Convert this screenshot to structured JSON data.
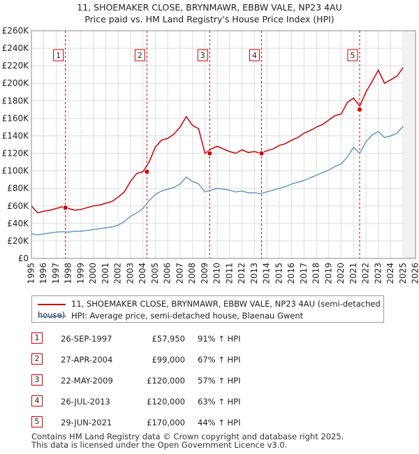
{
  "title_line1": "11, SHOEMAKER CLOSE, BRYNMAWR, EBBW VALE, NP23 4AU",
  "title_line2": "Price paid vs. HM Land Registry's House Price Index (HPI)",
  "chart_data": {
    "type": "line",
    "title": "11, SHOEMAKER CLOSE, BRYNMAWR, EBBW VALE, NP23 4AU — Price paid vs. HM Land Registry's House Price Index (HPI)",
    "xlabel": "",
    "ylabel": "",
    "xlim": [
      1995,
      2026
    ],
    "ylim": [
      0,
      260000
    ],
    "grid": true,
    "x_ticks": [
      1995,
      1996,
      1997,
      1998,
      1999,
      2000,
      2001,
      2002,
      2003,
      2004,
      2005,
      2006,
      2007,
      2008,
      2009,
      2010,
      2011,
      2012,
      2013,
      2014,
      2015,
      2016,
      2017,
      2018,
      2019,
      2020,
      2021,
      2022,
      2023,
      2024,
      2025,
      2026
    ],
    "y_ticks": [
      0,
      20000,
      40000,
      60000,
      80000,
      100000,
      120000,
      140000,
      160000,
      180000,
      200000,
      220000,
      240000,
      260000
    ],
    "y_tick_labels": [
      "£0",
      "£20K",
      "£40K",
      "£60K",
      "£80K",
      "£100K",
      "£120K",
      "£140K",
      "£160K",
      "£180K",
      "£200K",
      "£220K",
      "£240K",
      "£260K"
    ],
    "colors": {
      "property": "#cc0000",
      "hpi": "#6699cc",
      "marker_line": "#cc0000",
      "grid": "#dddddd"
    },
    "series": [
      {
        "name": "11, SHOEMAKER CLOSE, BRYNMAWR, EBBW VALE, NP23 4AU (semi-detached house)",
        "color": "#cc0000",
        "x": [
          1995.0,
          1995.5,
          1996.0,
          1996.5,
          1997.0,
          1997.5,
          1998.0,
          1998.5,
          1999.0,
          1999.5,
          2000.0,
          2000.5,
          2001.0,
          2001.5,
          2002.0,
          2002.5,
          2003.0,
          2003.5,
          2004.0,
          2004.5,
          2005.0,
          2005.5,
          2006.0,
          2006.5,
          2007.0,
          2007.5,
          2008.0,
          2008.5,
          2009.0,
          2009.5,
          2010.0,
          2010.5,
          2011.0,
          2011.5,
          2012.0,
          2012.5,
          2013.0,
          2013.5,
          2014.0,
          2014.5,
          2015.0,
          2015.5,
          2016.0,
          2016.5,
          2017.0,
          2017.5,
          2018.0,
          2018.5,
          2019.0,
          2019.5,
          2020.0,
          2020.5,
          2021.0,
          2021.5,
          2022.0,
          2022.5,
          2023.0,
          2023.5,
          2024.0,
          2024.5,
          2025.0
        ],
        "y": [
          60000,
          52000,
          54000,
          55000,
          57000,
          59000,
          57000,
          55000,
          56000,
          58000,
          60000,
          61000,
          63000,
          65000,
          70000,
          76000,
          88000,
          97000,
          99000,
          110000,
          127000,
          135000,
          137000,
          142000,
          150000,
          162000,
          152000,
          148000,
          120000,
          125000,
          128000,
          125000,
          122000,
          120000,
          124000,
          121000,
          122000,
          120000,
          123000,
          125000,
          129000,
          131000,
          135000,
          138000,
          143000,
          146000,
          150000,
          153000,
          158000,
          163000,
          165000,
          178000,
          183000,
          174000,
          190000,
          202000,
          215000,
          200000,
          204000,
          208000,
          218000
        ]
      },
      {
        "name": "HPI: Average price, semi-detached house, Blaenau Gwent",
        "color": "#6699cc",
        "x": [
          1995.0,
          1995.5,
          1996.0,
          1996.5,
          1997.0,
          1997.5,
          1998.0,
          1998.5,
          1999.0,
          1999.5,
          2000.0,
          2000.5,
          2001.0,
          2001.5,
          2002.0,
          2002.5,
          2003.0,
          2003.5,
          2004.0,
          2004.5,
          2005.0,
          2005.5,
          2006.0,
          2006.5,
          2007.0,
          2007.5,
          2008.0,
          2008.5,
          2009.0,
          2009.5,
          2010.0,
          2010.5,
          2011.0,
          2011.5,
          2012.0,
          2012.5,
          2013.0,
          2013.5,
          2014.0,
          2014.5,
          2015.0,
          2015.5,
          2016.0,
          2016.5,
          2017.0,
          2017.5,
          2018.0,
          2018.5,
          2019.0,
          2019.5,
          2020.0,
          2020.5,
          2021.0,
          2021.5,
          2022.0,
          2022.5,
          2023.0,
          2023.5,
          2024.0,
          2024.5,
          2025.0
        ],
        "y": [
          28000,
          27000,
          28000,
          29000,
          30000,
          30500,
          30000,
          31000,
          31000,
          32000,
          33000,
          34000,
          35000,
          36000,
          38000,
          42000,
          48000,
          52000,
          57000,
          66000,
          73000,
          77000,
          79000,
          81000,
          85000,
          93000,
          88000,
          85000,
          76000,
          78000,
          80000,
          79000,
          78000,
          76000,
          77000,
          75000,
          75000,
          74000,
          76000,
          78000,
          80000,
          82000,
          85000,
          87000,
          89000,
          92000,
          95000,
          98000,
          101000,
          105000,
          108000,
          116000,
          127000,
          120000,
          133000,
          141000,
          145000,
          138000,
          140000,
          143000,
          151000
        ]
      }
    ],
    "sales": [
      {
        "n": "1",
        "x": 1997.74,
        "price": 57950
      },
      {
        "n": "2",
        "x": 2004.32,
        "price": 99000
      },
      {
        "n": "3",
        "x": 2009.39,
        "price": 120000
      },
      {
        "n": "4",
        "x": 2013.57,
        "price": 120000
      },
      {
        "n": "5",
        "x": 2021.49,
        "price": 170000
      }
    ]
  },
  "legend": {
    "property_label": "11, SHOEMAKER CLOSE, BRYNMAWR, EBBW VALE, NP23 4AU (semi-detached house)",
    "hpi_label": "HPI: Average price, semi-detached house, Blaenau Gwent"
  },
  "sales_table": [
    {
      "num": "1",
      "date": "26-SEP-1997",
      "price": "£57,950",
      "hpi": "91% ↑ HPI"
    },
    {
      "num": "2",
      "date": "27-APR-2004",
      "price": "£99,000",
      "hpi": "67% ↑ HPI"
    },
    {
      "num": "3",
      "date": "22-MAY-2009",
      "price": "£120,000",
      "hpi": "57% ↑ HPI"
    },
    {
      "num": "4",
      "date": "26-JUL-2013",
      "price": "£120,000",
      "hpi": "63% ↑ HPI"
    },
    {
      "num": "5",
      "date": "29-JUN-2021",
      "price": "£170,000",
      "hpi": "44% ↑ HPI"
    }
  ],
  "footer": {
    "line1": "Contains HM Land Registry data © Crown copyright and database right 2025.",
    "line2": "This data is licensed under the Open Government Licence v3.0."
  }
}
